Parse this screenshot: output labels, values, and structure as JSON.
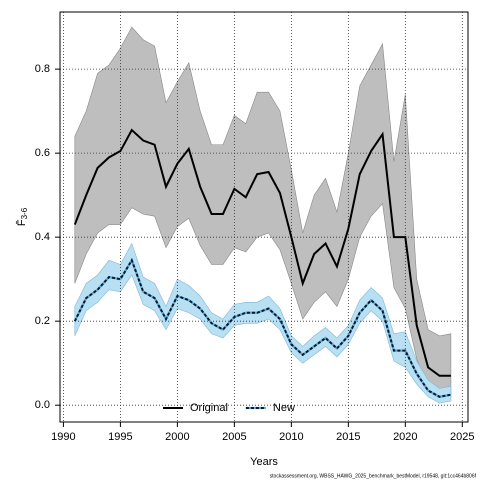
{
  "chart_data": {
    "type": "line",
    "ylabel": "F̄",
    "ylabel_subscript": "3-6",
    "xlabel": "Years",
    "footer": "stockassessment.org, WBSS_HAWG_2025_benchmark_bestModel, r19548, git:1cc464b806f",
    "x": [
      1991,
      1992,
      1993,
      1994,
      1995,
      1996,
      1997,
      1998,
      1999,
      2000,
      2001,
      2002,
      2003,
      2004,
      2005,
      2006,
      2007,
      2008,
      2009,
      2010,
      2011,
      2012,
      2013,
      2014,
      2015,
      2016,
      2017,
      2018,
      2019,
      2020,
      2021,
      2022,
      2023,
      2024
    ],
    "series": [
      {
        "name": "Original",
        "color": "#000000",
        "band_color": "#bebebe",
        "dash": false,
        "values": [
          0.43,
          0.5,
          0.565,
          0.59,
          0.605,
          0.655,
          0.63,
          0.62,
          0.52,
          0.575,
          0.61,
          0.52,
          0.455,
          0.455,
          0.515,
          0.495,
          0.55,
          0.555,
          0.505,
          0.4,
          0.29,
          0.36,
          0.385,
          0.33,
          0.42,
          0.55,
          0.605,
          0.645,
          0.4,
          0.4,
          0.19,
          0.09,
          0.07,
          0.07
        ],
        "upper": [
          0.64,
          0.7,
          0.79,
          0.81,
          0.85,
          0.9,
          0.87,
          0.855,
          0.72,
          0.77,
          0.815,
          0.7,
          0.62,
          0.62,
          0.69,
          0.67,
          0.745,
          0.745,
          0.7,
          0.56,
          0.41,
          0.5,
          0.54,
          0.46,
          0.6,
          0.76,
          0.81,
          0.86,
          0.58,
          0.74,
          0.3,
          0.18,
          0.165,
          0.17
        ],
        "lower": [
          0.29,
          0.36,
          0.41,
          0.43,
          0.43,
          0.47,
          0.455,
          0.45,
          0.375,
          0.425,
          0.445,
          0.38,
          0.335,
          0.335,
          0.375,
          0.365,
          0.4,
          0.41,
          0.37,
          0.29,
          0.205,
          0.245,
          0.27,
          0.235,
          0.3,
          0.4,
          0.45,
          0.48,
          0.28,
          0.23,
          0.11,
          0.04,
          0.02,
          0.02
        ]
      },
      {
        "name": "New",
        "color": "#0a1a2a",
        "band_color": "#b8dff2",
        "dash": true,
        "values": [
          0.2,
          0.255,
          0.275,
          0.305,
          0.3,
          0.345,
          0.27,
          0.255,
          0.205,
          0.26,
          0.25,
          0.23,
          0.195,
          0.18,
          0.21,
          0.22,
          0.22,
          0.23,
          0.205,
          0.145,
          0.12,
          0.14,
          0.16,
          0.135,
          0.165,
          0.22,
          0.25,
          0.225,
          0.13,
          0.13,
          0.075,
          0.035,
          0.02,
          0.025
        ],
        "upper": [
          0.235,
          0.29,
          0.31,
          0.345,
          0.335,
          0.385,
          0.305,
          0.29,
          0.235,
          0.3,
          0.285,
          0.26,
          0.22,
          0.205,
          0.24,
          0.245,
          0.245,
          0.26,
          0.23,
          0.165,
          0.14,
          0.165,
          0.185,
          0.16,
          0.19,
          0.25,
          0.28,
          0.255,
          0.17,
          0.175,
          0.105,
          0.06,
          0.04,
          0.045
        ],
        "lower": [
          0.165,
          0.225,
          0.245,
          0.275,
          0.27,
          0.31,
          0.24,
          0.225,
          0.18,
          0.23,
          0.22,
          0.205,
          0.17,
          0.16,
          0.19,
          0.195,
          0.195,
          0.205,
          0.18,
          0.125,
          0.1,
          0.12,
          0.14,
          0.115,
          0.145,
          0.195,
          0.225,
          0.2,
          0.105,
          0.09,
          0.05,
          0.02,
          0.005,
          0.01
        ]
      }
    ],
    "xlim": [
      1989.7,
      2025.5
    ],
    "xticks": [
      1990,
      1995,
      2000,
      2005,
      2010,
      2015,
      2020,
      2025
    ],
    "ylim": [
      -0.04,
      0.936
    ],
    "yticks": [
      {
        "value": 0,
        "label": "0.0"
      },
      0.2,
      0.4,
      0.6,
      0.8
    ],
    "grid": true,
    "legend": "bottom"
  }
}
